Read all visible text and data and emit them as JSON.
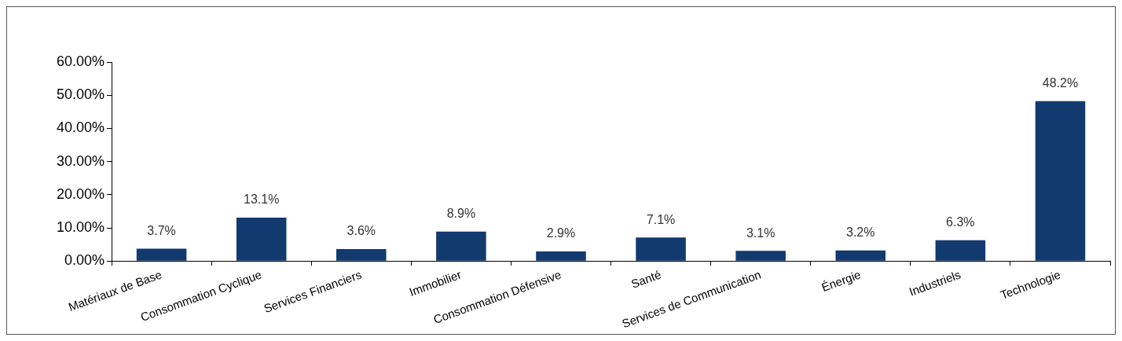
{
  "chart_data": {
    "type": "bar",
    "categories": [
      "Matériaux de Base",
      "Consommation Cyclique",
      "Services Financiers",
      "Immobilier",
      "Consommation Défensive",
      "Santé",
      "Services de Communication",
      "Énergie",
      "Industriels",
      "Technologie"
    ],
    "values": [
      3.7,
      13.1,
      3.6,
      8.9,
      2.9,
      7.1,
      3.1,
      3.2,
      6.3,
      48.2
    ],
    "value_labels": [
      "3.7%",
      "13.1%",
      "3.6%",
      "8.9%",
      "2.9%",
      "7.1%",
      "3.1%",
      "3.2%",
      "6.3%",
      "48.2%"
    ],
    "color": "#123a6e",
    "ylim": [
      0,
      60
    ],
    "yticks": [
      {
        "value": 0,
        "label": "0.00%"
      },
      {
        "value": 10,
        "label": "10.00%"
      },
      {
        "value": 20,
        "label": "20.00%"
      },
      {
        "value": 30,
        "label": "30.00%"
      },
      {
        "value": 40,
        "label": "40.00%"
      },
      {
        "value": 50,
        "label": "50.00%"
      },
      {
        "value": 60,
        "label": "60.00%"
      }
    ],
    "grid": false,
    "legend": false
  }
}
